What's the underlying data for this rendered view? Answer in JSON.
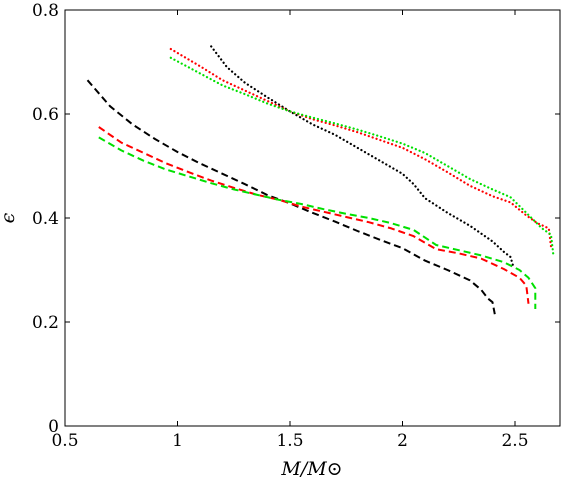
{
  "chart_data": {
    "type": "line",
    "xlabel": "M/M⊙",
    "ylabel": "ϵ",
    "xlim": [
      0.5,
      2.7
    ],
    "ylim": [
      0,
      0.8
    ],
    "xticks": [
      0.5,
      1,
      1.5,
      2,
      2.5
    ],
    "xtick_labels": [
      "0.5",
      "1",
      "1.5",
      "2",
      "2.5"
    ],
    "yticks": [
      0,
      0.2,
      0.4,
      0.6,
      0.8
    ],
    "ytick_labels": [
      "0",
      "0.2",
      "0.4",
      "0.6",
      "0.8"
    ],
    "grid": false,
    "series": [
      {
        "color": "#000000",
        "style": "dashed",
        "points": [
          [
            0.6,
            0.665
          ],
          [
            0.7,
            0.615
          ],
          [
            0.8,
            0.58
          ],
          [
            0.9,
            0.552
          ],
          [
            1.0,
            0.527
          ],
          [
            1.1,
            0.505
          ],
          [
            1.2,
            0.485
          ],
          [
            1.3,
            0.465
          ],
          [
            1.4,
            0.444
          ],
          [
            1.5,
            0.428
          ],
          [
            1.6,
            0.41
          ],
          [
            1.7,
            0.393
          ],
          [
            1.8,
            0.375
          ],
          [
            1.9,
            0.358
          ],
          [
            2.0,
            0.342
          ],
          [
            2.1,
            0.318
          ],
          [
            2.2,
            0.3
          ],
          [
            2.3,
            0.28
          ],
          [
            2.35,
            0.262
          ],
          [
            2.38,
            0.245
          ],
          [
            2.4,
            0.238
          ],
          [
            2.41,
            0.215
          ]
        ]
      },
      {
        "color": "#ff0000",
        "style": "dashed",
        "points": [
          [
            0.65,
            0.575
          ],
          [
            0.75,
            0.545
          ],
          [
            0.85,
            0.525
          ],
          [
            0.95,
            0.505
          ],
          [
            1.05,
            0.488
          ],
          [
            1.15,
            0.472
          ],
          [
            1.25,
            0.458
          ],
          [
            1.35,
            0.445
          ],
          [
            1.45,
            0.435
          ],
          [
            1.55,
            0.422
          ],
          [
            1.65,
            0.412
          ],
          [
            1.75,
            0.402
          ],
          [
            1.85,
            0.392
          ],
          [
            1.95,
            0.38
          ],
          [
            2.05,
            0.365
          ],
          [
            2.15,
            0.34
          ],
          [
            2.25,
            0.332
          ],
          [
            2.35,
            0.322
          ],
          [
            2.45,
            0.302
          ],
          [
            2.52,
            0.285
          ],
          [
            2.55,
            0.27
          ],
          [
            2.56,
            0.235
          ]
        ]
      },
      {
        "color": "#00e000",
        "style": "dashed",
        "points": [
          [
            0.65,
            0.555
          ],
          [
            0.75,
            0.53
          ],
          [
            0.85,
            0.51
          ],
          [
            0.95,
            0.493
          ],
          [
            1.05,
            0.48
          ],
          [
            1.15,
            0.467
          ],
          [
            1.25,
            0.455
          ],
          [
            1.35,
            0.445
          ],
          [
            1.45,
            0.435
          ],
          [
            1.55,
            0.427
          ],
          [
            1.65,
            0.417
          ],
          [
            1.75,
            0.408
          ],
          [
            1.85,
            0.4
          ],
          [
            1.95,
            0.39
          ],
          [
            2.05,
            0.377
          ],
          [
            2.15,
            0.348
          ],
          [
            2.25,
            0.338
          ],
          [
            2.35,
            0.328
          ],
          [
            2.45,
            0.315
          ],
          [
            2.52,
            0.3
          ],
          [
            2.56,
            0.285
          ],
          [
            2.59,
            0.265
          ],
          [
            2.59,
            0.225
          ]
        ]
      },
      {
        "color": "#000000",
        "style": "dotted",
        "points": [
          [
            1.15,
            0.73
          ],
          [
            1.22,
            0.69
          ],
          [
            1.3,
            0.66
          ],
          [
            1.4,
            0.632
          ],
          [
            1.5,
            0.605
          ],
          [
            1.6,
            0.58
          ],
          [
            1.7,
            0.56
          ],
          [
            1.8,
            0.535
          ],
          [
            1.9,
            0.51
          ],
          [
            2.0,
            0.485
          ],
          [
            2.05,
            0.465
          ],
          [
            2.1,
            0.438
          ],
          [
            2.2,
            0.41
          ],
          [
            2.3,
            0.385
          ],
          [
            2.4,
            0.355
          ],
          [
            2.45,
            0.335
          ],
          [
            2.48,
            0.325
          ],
          [
            2.49,
            0.31
          ]
        ]
      },
      {
        "color": "#ff0000",
        "style": "dotted",
        "points": [
          [
            0.97,
            0.725
          ],
          [
            1.1,
            0.692
          ],
          [
            1.2,
            0.665
          ],
          [
            1.3,
            0.645
          ],
          [
            1.4,
            0.625
          ],
          [
            1.5,
            0.605
          ],
          [
            1.6,
            0.59
          ],
          [
            1.7,
            0.578
          ],
          [
            1.8,
            0.565
          ],
          [
            1.9,
            0.55
          ],
          [
            2.0,
            0.535
          ],
          [
            2.1,
            0.513
          ],
          [
            2.2,
            0.488
          ],
          [
            2.3,
            0.462
          ],
          [
            2.4,
            0.442
          ],
          [
            2.48,
            0.43
          ],
          [
            2.55,
            0.405
          ],
          [
            2.6,
            0.39
          ],
          [
            2.65,
            0.38
          ],
          [
            2.66,
            0.345
          ]
        ]
      },
      {
        "color": "#00e000",
        "style": "dotted",
        "points": [
          [
            0.97,
            0.708
          ],
          [
            1.1,
            0.678
          ],
          [
            1.2,
            0.655
          ],
          [
            1.3,
            0.638
          ],
          [
            1.4,
            0.62
          ],
          [
            1.5,
            0.605
          ],
          [
            1.6,
            0.593
          ],
          [
            1.7,
            0.582
          ],
          [
            1.8,
            0.57
          ],
          [
            1.9,
            0.557
          ],
          [
            2.0,
            0.543
          ],
          [
            2.1,
            0.525
          ],
          [
            2.2,
            0.5
          ],
          [
            2.3,
            0.475
          ],
          [
            2.4,
            0.455
          ],
          [
            2.48,
            0.44
          ],
          [
            2.55,
            0.41
          ],
          [
            2.62,
            0.38
          ],
          [
            2.66,
            0.368
          ],
          [
            2.67,
            0.33
          ]
        ]
      }
    ]
  }
}
